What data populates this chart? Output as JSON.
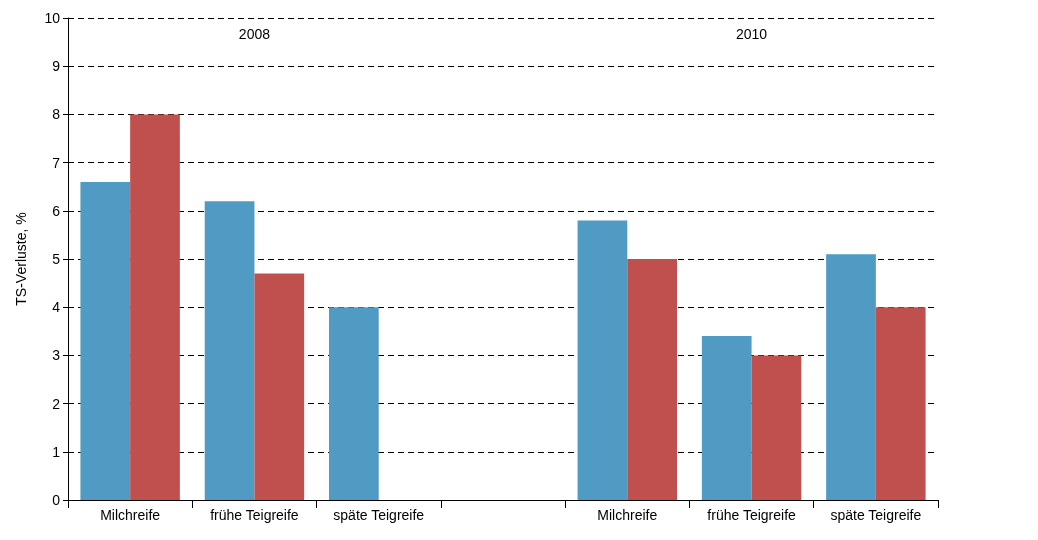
{
  "chart_data": {
    "type": "bar",
    "ylabel": "TS-Verluste, %",
    "categories": [
      "Milchreife",
      "frühe Teigreife",
      "späte Teigreife",
      null,
      "Milchreife",
      "frühe Teigreife",
      "späte Teigreife"
    ],
    "series": [
      {
        "color": "#4f9bc4",
        "values": [
          6.6,
          6.2,
          4.0,
          null,
          5.8,
          3.4,
          5.1
        ]
      },
      {
        "color": "#c0504d",
        "values": [
          8.0,
          4.7,
          null,
          null,
          5.0,
          3.0,
          4.0
        ]
      }
    ],
    "ylim": [
      0,
      10
    ],
    "yticks": [
      0,
      1,
      2,
      3,
      4,
      5,
      6,
      7,
      8,
      9,
      10
    ],
    "grid": "y",
    "annotations": [
      "2008",
      "2010"
    ]
  }
}
